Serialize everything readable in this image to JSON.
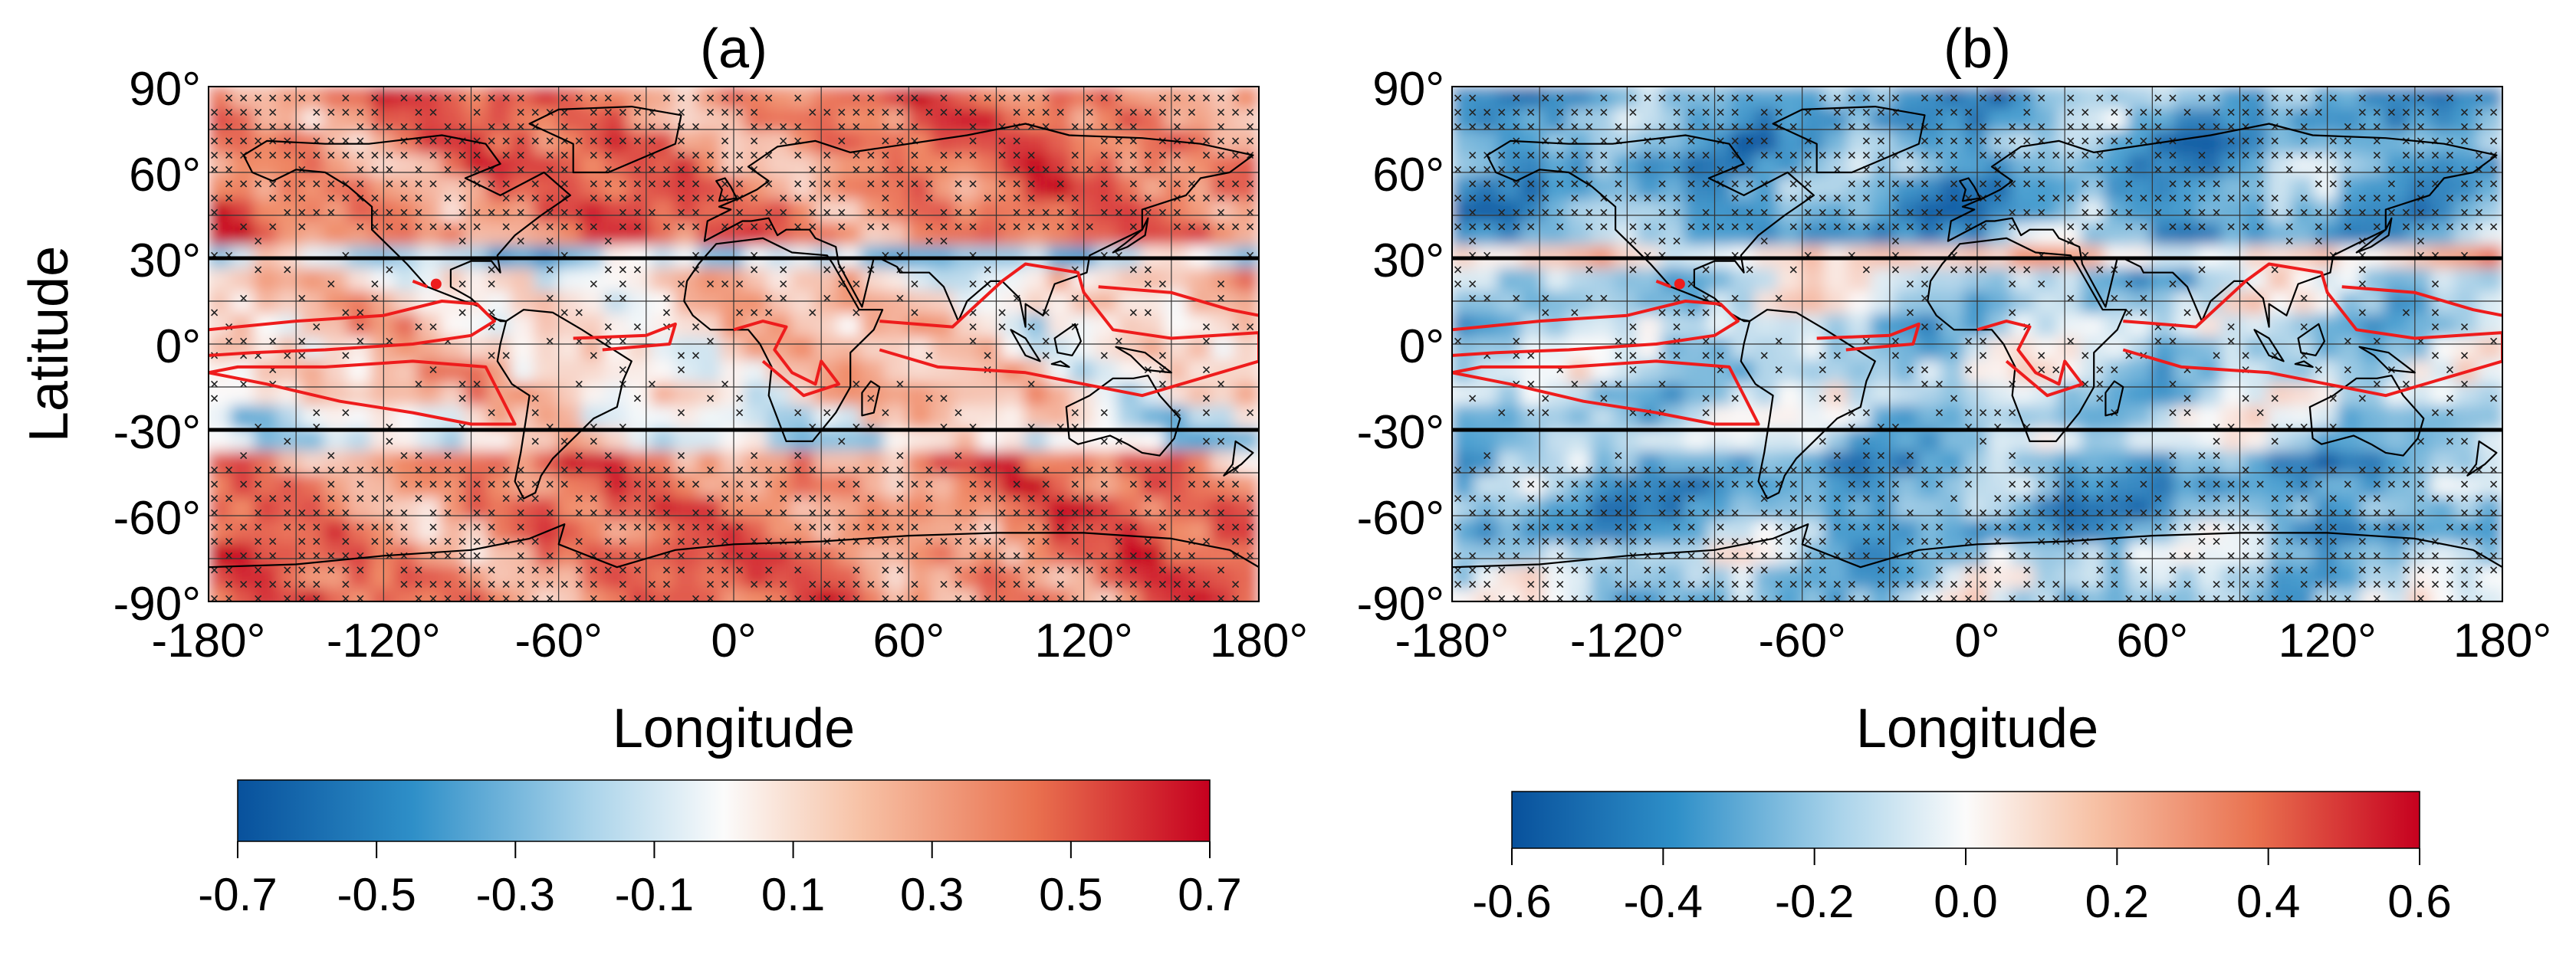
{
  "panels": [
    {
      "id": "a",
      "label": "(a)",
      "lat_ticks": [
        "90°",
        "60°",
        "30°",
        "0°",
        "-30°",
        "-60°",
        "-90°"
      ],
      "lon_ticks": [
        "-180°",
        "-120°",
        "-60°",
        "0°",
        "60°",
        "120°",
        "180°"
      ],
      "ylabel": "Latitude",
      "xlabel": "Longitude",
      "colorbar_ticks": [
        "-0.7",
        "-0.5",
        "-0.3",
        "-0.1",
        "0.1",
        "0.3",
        "0.5",
        "0.7"
      ],
      "colorbar_range": [
        -0.7,
        0.7
      ],
      "field_bias": "positive"
    },
    {
      "id": "b",
      "label": "(b)",
      "lat_ticks": [
        "90°",
        "60°",
        "30°",
        "0°",
        "-30°",
        "-60°",
        "-90°"
      ],
      "lon_ticks": [
        "-180°",
        "-120°",
        "-60°",
        "0°",
        "60°",
        "120°",
        "180°"
      ],
      "ylabel": "",
      "xlabel": "Longitude",
      "colorbar_ticks": [
        "-0.6",
        "-0.4",
        "-0.2",
        "0.0",
        "0.2",
        "0.4",
        "0.6"
      ],
      "colorbar_range": [
        -0.6,
        0.6
      ],
      "field_bias": "negative"
    }
  ],
  "colors": {
    "blue_dark": "#08519c",
    "blue_mid": "#4a9fd0",
    "white": "#fbfbfb",
    "red_mid": "#f08a66",
    "red_dark": "#c6001f",
    "contour": "#ee1c1c",
    "tropics_line": "#000000"
  },
  "tropics_lines_lat": [
    30,
    -30
  ]
}
